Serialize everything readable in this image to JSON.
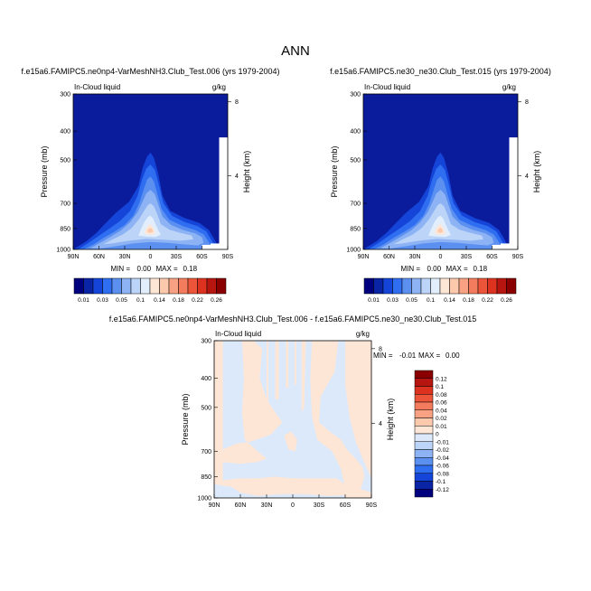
{
  "page_title": "ANN",
  "chart_data": [
    {
      "type": "heatmap",
      "title": "f.e15a6.FAMIPC5.ne0np4-VarMeshNH3.Club_Test.006 (yrs 1979-2004)",
      "left_label": "In-Cloud liquid",
      "right_label": "g/kg",
      "ylabel": "Pressure (mb)",
      "ylabel_right": "Height (km)",
      "x_ticks": [
        "90N",
        "60N",
        "30N",
        "0",
        "30S",
        "60S",
        "90S"
      ],
      "x_values": [
        90,
        60,
        30,
        0,
        -30,
        -60,
        -90
      ],
      "y_ticks": [
        "300",
        "400",
        "500",
        "700",
        "850",
        "1000"
      ],
      "y_values": [
        300,
        400,
        500,
        700,
        850,
        1000
      ],
      "ylim": [
        1000,
        300
      ],
      "y_scale": "log",
      "right_ticks": [
        "8",
        "4"
      ],
      "right_values": [
        8,
        4
      ],
      "stats": {
        "min_label": "MIN =",
        "min": "0.00",
        "max_label": "MAX =",
        "max": "0.18"
      },
      "colorbar": {
        "orientation": "horizontal",
        "labels": [
          "0.01",
          "0.03",
          "0.05",
          "0.1",
          "0.14",
          "0.18",
          "0.22",
          "0.26"
        ],
        "colors": [
          "#00007f",
          "#0a24a6",
          "#1545d8",
          "#2f6ef0",
          "#5b8ff0",
          "#8db3f4",
          "#bcd4f8",
          "#e3eefc",
          "#fde6d6",
          "#fcc9ad",
          "#f9a283",
          "#f47c5e",
          "#ec5539",
          "#de3221",
          "#b7150f",
          "#8a0000"
        ]
      },
      "fill_color": "#0a1c9c"
    },
    {
      "type": "heatmap",
      "title": "f.e15a6.FAMIPC5.ne30_ne30.Club_Test.015 (yrs 1979-2004)",
      "left_label": "In-Cloud liquid",
      "right_label": "g/kg",
      "ylabel": "Pressure (mb)",
      "ylabel_right": "Height (km)",
      "x_ticks": [
        "90N",
        "60N",
        "30N",
        "0",
        "30S",
        "60S",
        "90S"
      ],
      "x_values": [
        90,
        60,
        30,
        0,
        -30,
        -60,
        -90
      ],
      "y_ticks": [
        "300",
        "400",
        "500",
        "700",
        "850",
        "1000"
      ],
      "y_values": [
        300,
        400,
        500,
        700,
        850,
        1000
      ],
      "ylim": [
        1000,
        300
      ],
      "y_scale": "log",
      "right_ticks": [
        "8",
        "4"
      ],
      "right_values": [
        8,
        4
      ],
      "stats": {
        "min_label": "MIN =",
        "min": "0.00",
        "max_label": "MAX =",
        "max": "0.18"
      },
      "colorbar": {
        "orientation": "horizontal",
        "labels": [
          "0.01",
          "0.03",
          "0.05",
          "0.1",
          "0.14",
          "0.18",
          "0.22",
          "0.26"
        ],
        "colors": [
          "#00007f",
          "#0a24a6",
          "#1545d8",
          "#2f6ef0",
          "#5b8ff0",
          "#8db3f4",
          "#bcd4f8",
          "#e3eefc",
          "#fde6d6",
          "#fcc9ad",
          "#f9a283",
          "#f47c5e",
          "#ec5539",
          "#de3221",
          "#b7150f",
          "#8a0000"
        ]
      },
      "fill_color": "#0a1c9c"
    },
    {
      "type": "heatmap",
      "title": "f.e15a6.FAMIPC5.ne0np4-VarMeshNH3.Club_Test.006 - f.e15a6.FAMIPC5.ne30_ne30.Club_Test.015",
      "left_label": "In-Cloud liquid",
      "right_label": "g/kg",
      "ylabel": "Pressure (mb)",
      "ylabel_right": "Height (km)",
      "x_ticks": [
        "90N",
        "60N",
        "30N",
        "0",
        "30S",
        "60S",
        "90S"
      ],
      "x_values": [
        90,
        60,
        30,
        0,
        -30,
        -60,
        -90
      ],
      "y_ticks": [
        "300",
        "400",
        "500",
        "700",
        "850",
        "1000"
      ],
      "y_values": [
        300,
        400,
        500,
        700,
        850,
        1000
      ],
      "ylim": [
        1000,
        300
      ],
      "y_scale": "log",
      "right_ticks": [
        "8",
        "4"
      ],
      "right_values": [
        8,
        4
      ],
      "stats": {
        "min_label": "MIN =",
        "min": "-0.01",
        "max_label": "MAX =",
        "max": "0.00"
      },
      "colorbar": {
        "orientation": "vertical",
        "labels": [
          "0.12",
          "0.1",
          "0.08",
          "0.06",
          "0.04",
          "0.02",
          "0.01",
          "0",
          "-0.01",
          "-0.02",
          "-0.04",
          "-0.06",
          "-0.08",
          "-0.1",
          "-0.12"
        ],
        "colors": [
          "#8a0000",
          "#b7150f",
          "#de3221",
          "#ec5539",
          "#f47c5e",
          "#f9a283",
          "#fcc9ad",
          "#fde6d6",
          "#dce9fb",
          "#bcd4f8",
          "#8db3f4",
          "#5b8ff0",
          "#2f6ef0",
          "#1545d8",
          "#0a24a6",
          "#00007f"
        ]
      },
      "fill_color": "#dce9fb",
      "positive_color": "#fde6d6"
    }
  ]
}
